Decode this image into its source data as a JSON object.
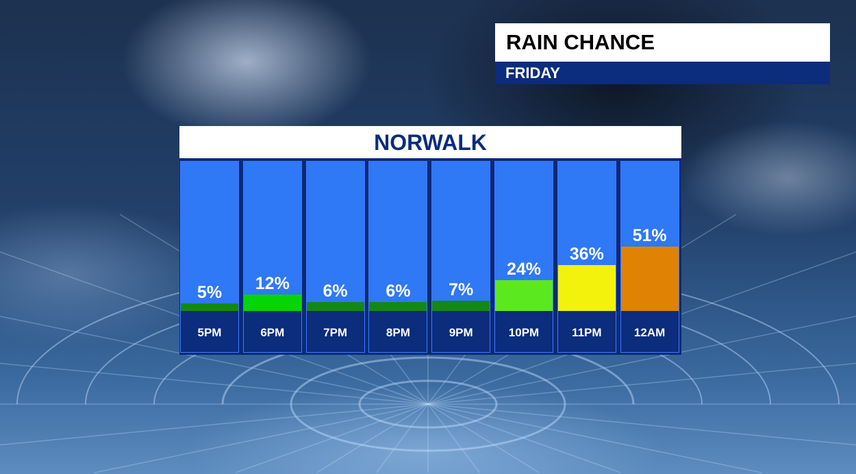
{
  "header": {
    "title": "RAIN CHANCE",
    "subtitle": "FRIDAY"
  },
  "chart_data": {
    "type": "bar",
    "title": "NORWALK",
    "categories": [
      "5PM",
      "6PM",
      "7PM",
      "8PM",
      "9PM",
      "10PM",
      "11PM",
      "12AM"
    ],
    "values": [
      5,
      12,
      6,
      6,
      7,
      24,
      36,
      51
    ],
    "labels": [
      "5%",
      "12%",
      "6%",
      "6%",
      "7%",
      "24%",
      "36%",
      "51%"
    ],
    "colors": [
      "#128a12",
      "#05d405",
      "#128a12",
      "#128a12",
      "#128a12",
      "#5ce81e",
      "#f2f20c",
      "#e08204"
    ],
    "ylim": [
      0,
      100
    ],
    "xlabel": "",
    "ylabel": ""
  }
}
